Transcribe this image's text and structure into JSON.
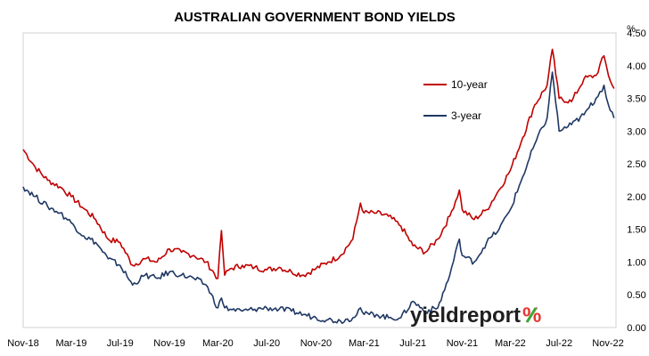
{
  "chart_data": {
    "type": "line",
    "title": "AUSTRALIAN GOVERNMENT BOND YIELDS",
    "ylabel": "%",
    "ylim": [
      0,
      4.5
    ],
    "y_ticks": [
      "0.00",
      "0.50",
      "1.00",
      "1.50",
      "2.00",
      "2.50",
      "3.00",
      "3.50",
      "4.00",
      "4.50"
    ],
    "x_ticks": [
      "Nov-18",
      "Mar-19",
      "Jul-19",
      "Nov-19",
      "Mar-20",
      "Jul-20",
      "Nov-20",
      "Mar-21",
      "Jul-21",
      "Nov-21",
      "Mar-22",
      "Jul-22",
      "Nov-22"
    ],
    "legend_placement": "right-center, inside plot",
    "series": [
      {
        "name": "10-year",
        "color": "#C00000",
        "x": [
          "2018-11-01",
          "2018-12-01",
          "2019-01-01",
          "2019-02-01",
          "2019-03-01",
          "2019-04-01",
          "2019-05-01",
          "2019-06-01",
          "2019-07-01",
          "2019-08-01",
          "2019-09-01",
          "2019-10-01",
          "2019-11-01",
          "2019-12-01",
          "2020-01-01",
          "2020-02-01",
          "2020-03-01",
          "2020-03-10",
          "2020-03-18",
          "2020-04-01",
          "2020-05-01",
          "2020-06-01",
          "2020-07-01",
          "2020-08-01",
          "2020-09-01",
          "2020-10-01",
          "2020-11-01",
          "2020-12-01",
          "2021-01-01",
          "2021-02-01",
          "2021-02-20",
          "2021-03-01",
          "2021-04-01",
          "2021-05-01",
          "2021-06-01",
          "2021-07-01",
          "2021-08-01",
          "2021-09-01",
          "2021-10-01",
          "2021-10-25",
          "2021-11-01",
          "2021-12-01",
          "2022-01-01",
          "2022-02-01",
          "2022-03-01",
          "2022-04-01",
          "2022-05-01",
          "2022-06-01",
          "2022-06-14",
          "2022-07-01",
          "2022-08-01",
          "2022-09-01",
          "2022-10-01",
          "2022-10-21",
          "2022-11-01",
          "2022-11-15"
        ],
        "values": [
          2.72,
          2.45,
          2.25,
          2.15,
          2.0,
          1.82,
          1.65,
          1.35,
          1.3,
          0.95,
          1.05,
          1.0,
          1.2,
          1.15,
          1.1,
          1.0,
          0.75,
          1.48,
          0.8,
          0.9,
          0.95,
          0.92,
          0.88,
          0.92,
          0.85,
          0.8,
          0.9,
          1.0,
          1.1,
          1.35,
          1.9,
          1.75,
          1.75,
          1.7,
          1.55,
          1.25,
          1.15,
          1.35,
          1.7,
          2.1,
          1.8,
          1.65,
          1.8,
          2.1,
          2.4,
          2.9,
          3.4,
          3.7,
          4.25,
          3.5,
          3.45,
          3.8,
          3.85,
          4.15,
          3.85,
          3.65
        ]
      },
      {
        "name": "3-year",
        "color": "#1F3864",
        "x": [
          "2018-11-01",
          "2018-12-01",
          "2019-01-01",
          "2019-02-01",
          "2019-03-01",
          "2019-04-01",
          "2019-05-01",
          "2019-06-01",
          "2019-07-01",
          "2019-08-01",
          "2019-09-01",
          "2019-10-01",
          "2019-11-01",
          "2019-12-01",
          "2020-01-01",
          "2020-02-01",
          "2020-03-01",
          "2020-03-10",
          "2020-03-18",
          "2020-04-01",
          "2020-05-01",
          "2020-06-01",
          "2020-07-01",
          "2020-08-01",
          "2020-09-01",
          "2020-10-01",
          "2020-11-01",
          "2020-12-01",
          "2021-01-01",
          "2021-02-01",
          "2021-02-20",
          "2021-03-01",
          "2021-04-01",
          "2021-05-01",
          "2021-06-01",
          "2021-07-01",
          "2021-08-01",
          "2021-09-01",
          "2021-10-01",
          "2021-10-25",
          "2021-11-01",
          "2021-12-01",
          "2022-01-01",
          "2022-02-01",
          "2022-03-01",
          "2022-04-01",
          "2022-05-01",
          "2022-06-01",
          "2022-06-14",
          "2022-07-01",
          "2022-08-01",
          "2022-09-01",
          "2022-10-01",
          "2022-10-21",
          "2022-11-01",
          "2022-11-15"
        ],
        "values": [
          2.15,
          2.0,
          1.85,
          1.75,
          1.6,
          1.4,
          1.3,
          1.05,
          0.95,
          0.65,
          0.8,
          0.75,
          0.85,
          0.8,
          0.75,
          0.65,
          0.3,
          0.45,
          0.3,
          0.28,
          0.25,
          0.28,
          0.3,
          0.28,
          0.25,
          0.2,
          0.15,
          0.12,
          0.1,
          0.15,
          0.3,
          0.2,
          0.2,
          0.15,
          0.15,
          0.4,
          0.25,
          0.3,
          0.8,
          1.35,
          1.1,
          1.0,
          1.3,
          1.5,
          1.8,
          2.3,
          2.8,
          3.2,
          3.9,
          3.0,
          3.1,
          3.25,
          3.5,
          3.7,
          3.4,
          3.2
        ]
      }
    ]
  },
  "brand": {
    "text": "yieldreport",
    "symbol": "%",
    "text_color": "#1F1F1F",
    "symbol_color": "#E53935",
    "accent_color": "#3BAA35"
  }
}
